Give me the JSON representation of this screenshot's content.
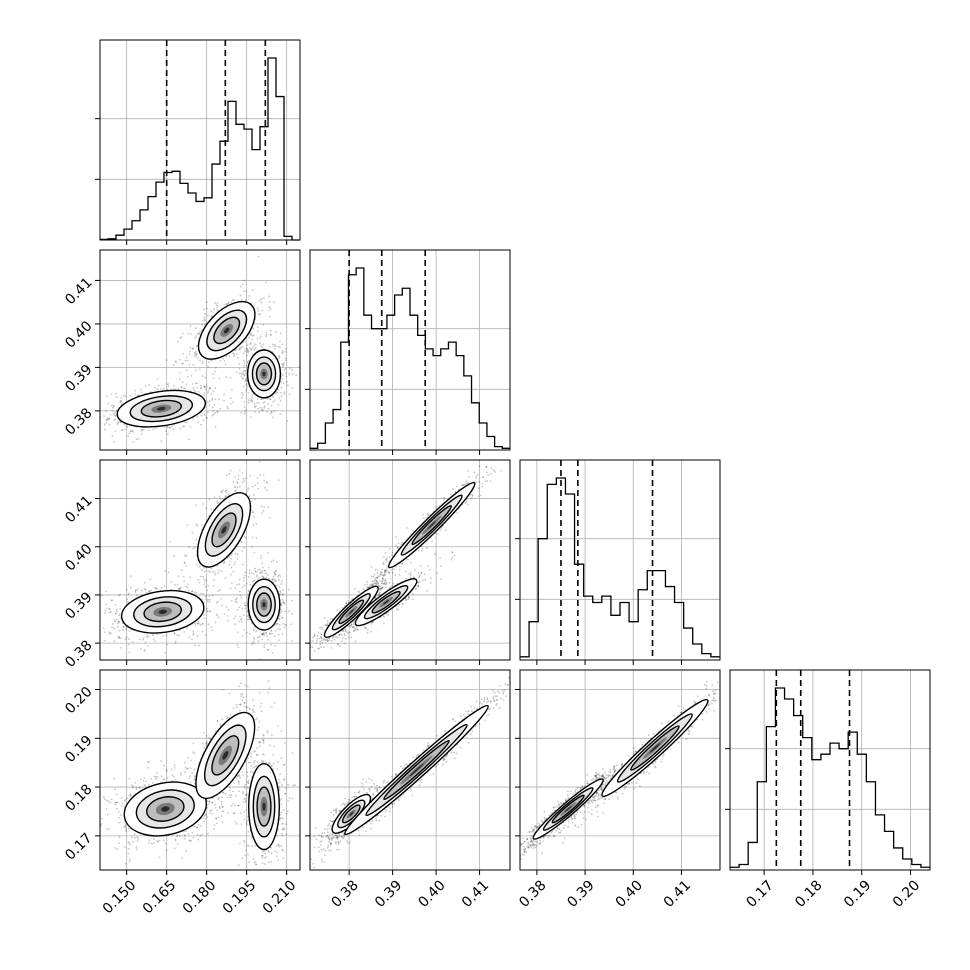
{
  "chart_data": {
    "type": "corner",
    "grid": true,
    "n_params": 4,
    "params": [
      {
        "range": [
          0.14,
          0.215
        ],
        "ticks": [
          0.15,
          0.165,
          0.18,
          0.195,
          0.21
        ],
        "tick_labels": [
          "0.150",
          "0.165",
          "0.180",
          "0.195",
          "0.210"
        ],
        "quantiles": [
          0.165,
          0.187,
          0.202
        ]
      },
      {
        "range": [
          0.371,
          0.417
        ],
        "ticks": [
          0.38,
          0.39,
          0.4,
          0.41
        ],
        "tick_labels": [
          "0.38",
          "0.39",
          "0.40",
          "0.41"
        ],
        "quantiles": [
          0.38,
          0.3875,
          0.3975
        ]
      },
      {
        "range": [
          0.3765,
          0.418
        ],
        "ticks": [
          0.38,
          0.39,
          0.4,
          0.41
        ],
        "tick_labels": [
          "0.38",
          "0.39",
          "0.40",
          "0.41"
        ],
        "quantiles": [
          0.385,
          0.3885,
          0.404
        ]
      },
      {
        "range": [
          0.163,
          0.204
        ],
        "ticks": [
          0.17,
          0.18,
          0.19,
          0.2
        ],
        "tick_labels": [
          "0.17",
          "0.18",
          "0.19",
          "0.20"
        ],
        "quantiles": [
          0.1725,
          0.1775,
          0.1875
        ]
      }
    ],
    "histograms": [
      {
        "param": 0,
        "peak": 0.162,
        "values": [
          0.5,
          1,
          4,
          9,
          16,
          25,
          36,
          48,
          56,
          57,
          47,
          39,
          32,
          35,
          63,
          82,
          115,
          96,
          92,
          75,
          94,
          151,
          119,
          3,
          0
        ]
      },
      {
        "param": 1,
        "peak": 0.4,
        "values": [
          0.5,
          2,
          8,
          12,
          32,
          52,
          54,
          40,
          36,
          36,
          40,
          46,
          48,
          40,
          34,
          30,
          28,
          30,
          32,
          28,
          22,
          14,
          8,
          4,
          1,
          0.5
        ]
      },
      {
        "param": 2,
        "peak": 0.4,
        "values": [
          1,
          12,
          38,
          55,
          57,
          52,
          30,
          20,
          18,
          20,
          14,
          18,
          12,
          22,
          28,
          28,
          23,
          18,
          10,
          5,
          2,
          1
        ]
      },
      {
        "param": 3,
        "peak": 0.33,
        "values": [
          0.5,
          1,
          5,
          16,
          26,
          33,
          31,
          28,
          24,
          20,
          21,
          23,
          22,
          25,
          21,
          16,
          10,
          7,
          4,
          2,
          1,
          0.5
        ]
      }
    ],
    "pairs": [
      {
        "x_param": 0,
        "y_param": 1,
        "clusters": [
          {
            "cx": 0.163,
            "cy": 0.3805,
            "sx": 0.0075,
            "sy": 0.0019,
            "rho": 0.3,
            "weight": 1.0
          },
          {
            "cx": 0.1875,
            "cy": 0.3985,
            "sx": 0.0048,
            "sy": 0.003,
            "rho": 0.55,
            "weight": 0.8
          },
          {
            "cx": 0.2015,
            "cy": 0.3885,
            "sx": 0.0028,
            "sy": 0.0025,
            "rho": 0.0,
            "weight": 0.9
          }
        ]
      },
      {
        "x_param": 0,
        "y_param": 2,
        "clusters": [
          {
            "cx": 0.1635,
            "cy": 0.3865,
            "sx": 0.007,
            "sy": 0.002,
            "rho": 0.2,
            "weight": 1.0
          },
          {
            "cx": 0.1865,
            "cy": 0.4035,
            "sx": 0.0045,
            "sy": 0.0035,
            "rho": 0.6,
            "weight": 0.8
          },
          {
            "cx": 0.2015,
            "cy": 0.388,
            "sx": 0.0027,
            "sy": 0.0024,
            "rho": 0.0,
            "weight": 0.9
          }
        ]
      },
      {
        "x_param": 0,
        "y_param": 3,
        "clusters": [
          {
            "cx": 0.1645,
            "cy": 0.1755,
            "sx": 0.007,
            "sy": 0.0025,
            "rho": 0.2,
            "weight": 1.0
          },
          {
            "cx": 0.187,
            "cy": 0.1865,
            "sx": 0.005,
            "sy": 0.004,
            "rho": 0.65,
            "weight": 0.8
          },
          {
            "cx": 0.2015,
            "cy": 0.176,
            "sx": 0.0026,
            "sy": 0.004,
            "rho": 0.0,
            "weight": 0.9
          }
        ]
      },
      {
        "x_param": 1,
        "y_param": 2,
        "clusters": [
          {
            "cx": 0.3805,
            "cy": 0.3865,
            "sx": 0.0028,
            "sy": 0.0024,
            "rho": 0.92,
            "weight": 1.0
          },
          {
            "cx": 0.3885,
            "cy": 0.3885,
            "sx": 0.0032,
            "sy": 0.0022,
            "rho": 0.9,
            "weight": 0.8
          },
          {
            "cx": 0.399,
            "cy": 0.4045,
            "sx": 0.0045,
            "sy": 0.004,
            "rho": 0.97,
            "weight": 0.8
          }
        ]
      },
      {
        "x_param": 1,
        "y_param": 3,
        "clusters": [
          {
            "cx": 0.3805,
            "cy": 0.1745,
            "sx": 0.002,
            "sy": 0.0018,
            "rho": 0.8,
            "weight": 0.9
          },
          {
            "cx": 0.3955,
            "cy": 0.1835,
            "sx": 0.0075,
            "sy": 0.006,
            "rho": 0.985,
            "weight": 1.2
          }
        ]
      },
      {
        "x_param": 2,
        "y_param": 3,
        "clusters": [
          {
            "cx": 0.3865,
            "cy": 0.1755,
            "sx": 0.0033,
            "sy": 0.0028,
            "rho": 0.96,
            "weight": 1.3
          },
          {
            "cx": 0.4045,
            "cy": 0.188,
            "sx": 0.005,
            "sy": 0.0045,
            "rho": 0.97,
            "weight": 0.9
          }
        ]
      }
    ]
  }
}
